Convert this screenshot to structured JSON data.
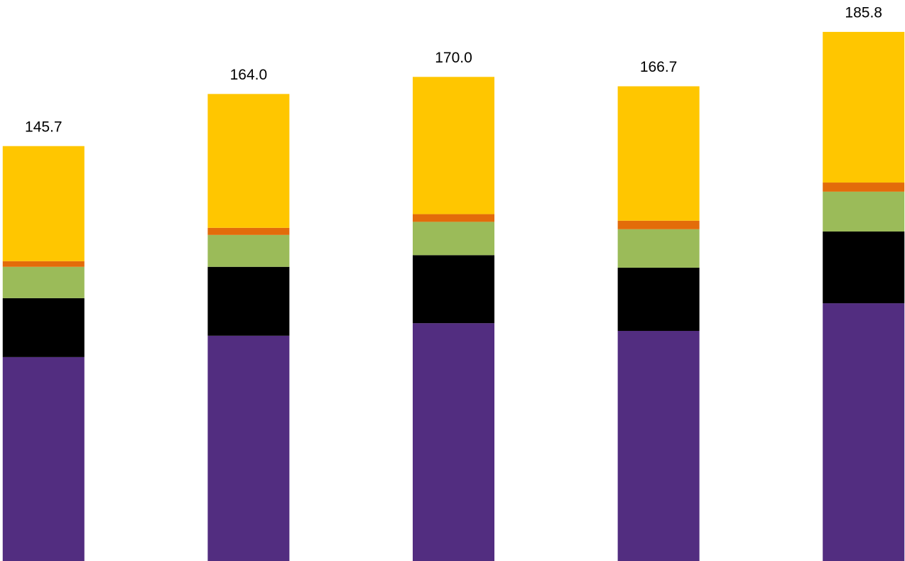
{
  "chart_data": {
    "type": "stacked_bar",
    "categories": [
      null,
      null,
      null,
      null,
      null
    ],
    "series": [
      {
        "color": "#522d80",
        "values": [
          71.6,
          79.1,
          83.5,
          80.8,
          90.5
        ]
      },
      {
        "color": "#000000",
        "values": [
          20.7,
          24.2,
          23.9,
          22.2,
          25.2
        ]
      },
      {
        "color": "#9bbb59",
        "values": [
          11.0,
          11.2,
          11.7,
          13.5,
          14.0
        ]
      },
      {
        "color": "#e36c0a",
        "values": [
          2.0,
          2.5,
          2.7,
          3.0,
          3.2
        ]
      },
      {
        "color": "#ffc600",
        "values": [
          40.4,
          47.0,
          48.2,
          47.2,
          52.9
        ]
      }
    ],
    "totals": [
      145.7,
      164.0,
      170.0,
      166.7,
      185.8
    ],
    "total_labels": [
      "145.7",
      "164.0",
      "170.0",
      "166.7",
      "185.8"
    ],
    "ylim": [
      0,
      197
    ]
  }
}
